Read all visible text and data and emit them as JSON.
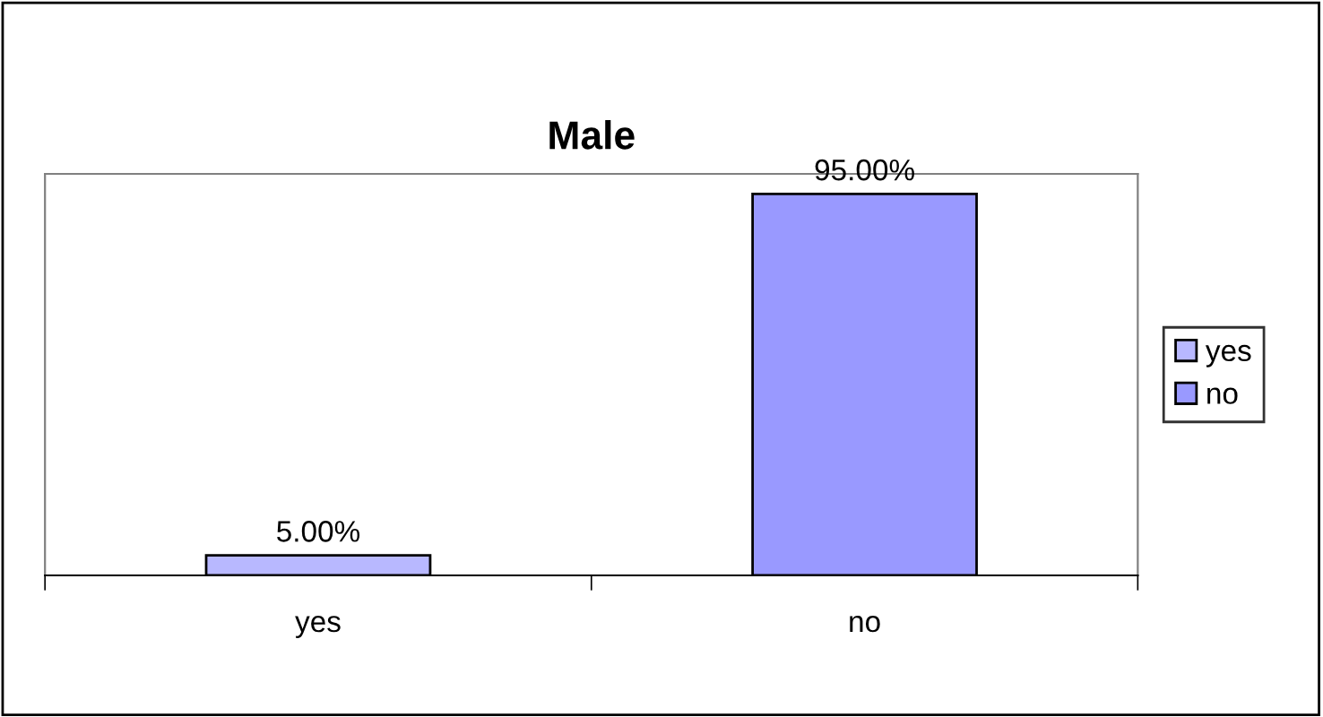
{
  "chart_data": {
    "type": "bar",
    "title": "Male",
    "categories": [
      "yes",
      "no"
    ],
    "series": [
      {
        "name": "yes",
        "color": "#b8b8ff",
        "values": [
          5,
          null
        ],
        "value_labels": [
          "5.00%",
          null
        ]
      },
      {
        "name": "no",
        "color": "#9999ff",
        "values": [
          null,
          95
        ],
        "value_labels": [
          null,
          "95.00%"
        ]
      }
    ],
    "ylim": [
      0,
      100
    ],
    "tick_labels": "x",
    "legend": "right",
    "grid": false
  }
}
